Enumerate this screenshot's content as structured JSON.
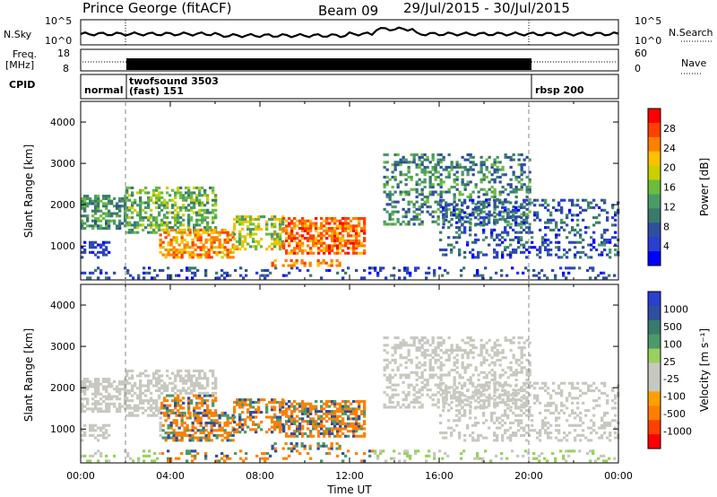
{
  "header": {
    "station": "Prince George (fitACF)",
    "beam": "Beam 09",
    "dates": "29/Jul/2015 - 30/Jul/2015"
  },
  "top_panels": {
    "nsky_label": "N.Sky",
    "nsky_ticks": [
      "10^5",
      "10^0"
    ],
    "nsearch_label": "N.Search",
    "nsearch_ticks": [
      "10^5",
      "10^0"
    ],
    "freq_label_1": "Freq.",
    "freq_label_2": "[MHz]",
    "freq_ticks": [
      "18",
      "8"
    ],
    "nave_label": "Nave",
    "nave_ticks": [
      "60",
      "0"
    ],
    "cpid_label": "CPID",
    "cpid_segments": [
      {
        "text": "normal"
      },
      {
        "text": "twofsound 3503",
        "text2": "(fast) 151"
      },
      {
        "text": "rbsp 200"
      }
    ]
  },
  "colorbars": {
    "power": {
      "label": "Power [dB]",
      "ticks": [
        "28",
        "24",
        "20",
        "16",
        "12",
        "8",
        "4"
      ],
      "colors": [
        "#ff0000",
        "#ff4000",
        "#ff8000",
        "#ffc000",
        "#c8d000",
        "#6cbc3c",
        "#4a9a6a",
        "#3a7a6a",
        "#304ea0",
        "#2a3ecf",
        "#0000ff"
      ]
    },
    "velocity": {
      "label": "Velocity [m s⁻¹]",
      "ticks": [
        "1000",
        "500",
        "100",
        "25",
        "-25",
        "-100",
        "-500",
        "-1000"
      ],
      "colors": [
        "#2a3ecf",
        "#304ea0",
        "#3a7a6a",
        "#4a9a6a",
        "#9ad060",
        "#c8c8c0",
        "#c8c8c0",
        "#ffa000",
        "#ff8000",
        "#ff4000",
        "#ff0000"
      ]
    }
  },
  "axes": {
    "ylabel": "Slant Range [km]",
    "xlabel": "Time UT",
    "yticks": [
      "4000",
      "3000",
      "2000",
      "1000"
    ],
    "xticks": [
      "00:00",
      "04:00",
      "08:00",
      "12:00",
      "16:00",
      "20:00",
      "00:00"
    ]
  },
  "chart_data": {
    "type": "heatmap",
    "x_range_hours": [
      0,
      24
    ],
    "y_range_km": [
      180,
      4500
    ],
    "panels": [
      "power",
      "velocity"
    ],
    "mode_change_times_hours": [
      2.0,
      20.0
    ],
    "grid": false
  }
}
